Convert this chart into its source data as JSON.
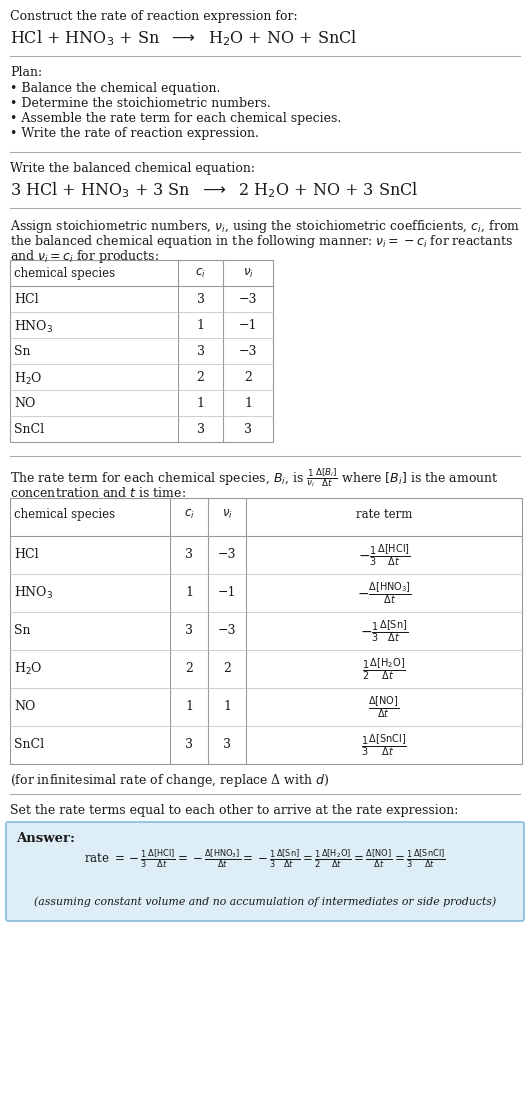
{
  "bg_color": "#ffffff",
  "text_color": "#1a1a1a",
  "title_line1": "Construct the rate of reaction expression for:",
  "plan_header": "Plan:",
  "plan_items": [
    "• Balance the chemical equation.",
    "• Determine the stoichiometric numbers.",
    "• Assemble the rate term for each chemical species.",
    "• Write the rate of reaction expression."
  ],
  "balanced_header": "Write the balanced chemical equation:",
  "assign_text1": "Assign stoichiometric numbers, $\\nu_i$, using the stoichiometric coefficients, $c_i$, from",
  "assign_text2": "the balanced chemical equation in the following manner: $\\nu_i = -c_i$ for reactants",
  "assign_text3": "and $\\nu_i = c_i$ for products:",
  "table1_headers": [
    "chemical species",
    "$c_i$",
    "$\\nu_i$"
  ],
  "table1_rows": [
    [
      "HCl",
      "3",
      "−3"
    ],
    [
      "HNO$_3$",
      "1",
      "−1"
    ],
    [
      "Sn",
      "3",
      "−3"
    ],
    [
      "H$_2$O",
      "2",
      "2"
    ],
    [
      "NO",
      "1",
      "1"
    ],
    [
      "SnCl",
      "3",
      "3"
    ]
  ],
  "rate_term_text1": "The rate term for each chemical species, $B_i$, is $\\frac{1}{\\nu_i}\\frac{\\Delta[B_i]}{\\Delta t}$ where $[B_i]$ is the amount",
  "rate_term_text2": "concentration and $t$ is time:",
  "table2_headers": [
    "chemical species",
    "$c_i$",
    "$\\nu_i$",
    "rate term"
  ],
  "table2_rows": [
    [
      "HCl",
      "3",
      "−3",
      "$-\\frac{1}{3}\\frac{\\Delta[\\mathrm{HCl}]}{\\Delta t}$"
    ],
    [
      "HNO$_3$",
      "1",
      "−1",
      "$-\\frac{\\Delta[\\mathrm{HNO_3}]}{\\Delta t}$"
    ],
    [
      "Sn",
      "3",
      "−3",
      "$-\\frac{1}{3}\\frac{\\Delta[\\mathrm{Sn}]}{\\Delta t}$"
    ],
    [
      "H$_2$O",
      "2",
      "2",
      "$\\frac{1}{2}\\frac{\\Delta[\\mathrm{H_2O}]}{\\Delta t}$"
    ],
    [
      "NO",
      "1",
      "1",
      "$\\frac{\\Delta[\\mathrm{NO}]}{\\Delta t}$"
    ],
    [
      "SnCl",
      "3",
      "3",
      "$\\frac{1}{3}\\frac{\\Delta[\\mathrm{SnCl}]}{\\Delta t}$"
    ]
  ],
  "infinitesimal_note": "(for infinitesimal rate of change, replace Δ with $d$)",
  "set_rate_text": "Set the rate terms equal to each other to arrive at the rate expression:",
  "answer_label": "Answer:",
  "answer_box_facecolor": "#ddeef6",
  "answer_box_edgecolor": "#88bbdd",
  "assuming_note": "(assuming constant volume and no accumulation of intermediates or side products)"
}
